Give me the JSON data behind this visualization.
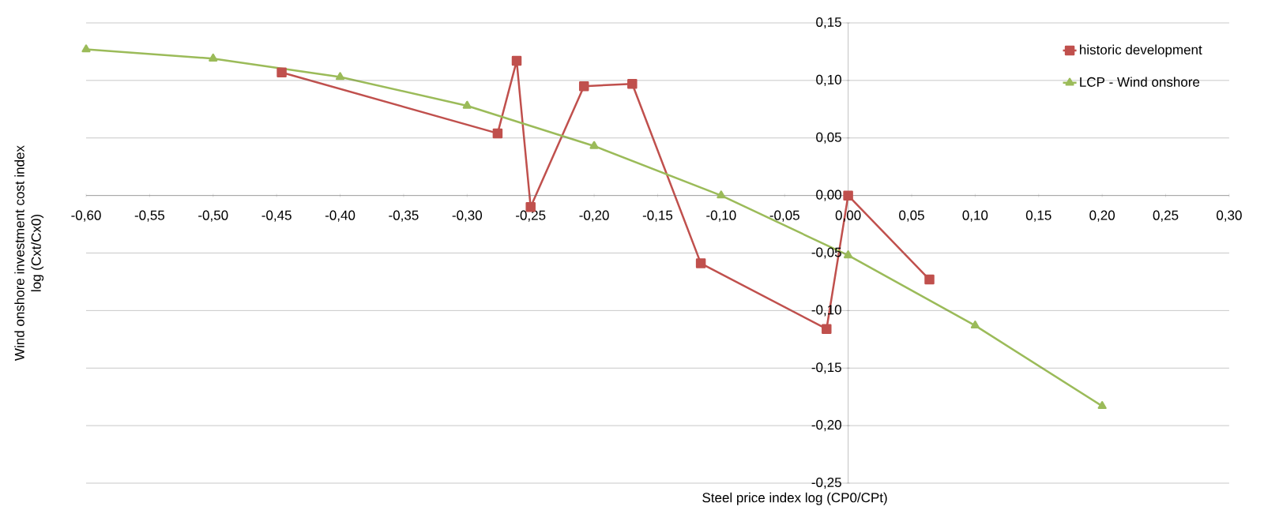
{
  "chart_data": {
    "type": "line",
    "xlabel": "Steel price index log (CP0/CPt)",
    "ylabel": "Wind onshore investment cost index\nlog (Cxt/Cx0)",
    "series": [
      {
        "name": "historic development",
        "color": "#c0504d",
        "marker": "square",
        "x": [
          -0.446,
          -0.276,
          -0.261,
          -0.25,
          -0.208,
          -0.17,
          -0.116,
          -0.017,
          0.0,
          0.064
        ],
        "values": [
          0.107,
          0.054,
          0.117,
          -0.01,
          0.095,
          0.097,
          -0.059,
          -0.116,
          0.0,
          -0.073
        ]
      },
      {
        "name": "LCP - Wind onshore",
        "color": "#9bbb59",
        "marker": "triangle",
        "x": [
          -0.6,
          -0.5,
          -0.4,
          -0.3,
          -0.2,
          -0.1,
          0.0,
          0.1,
          0.2
        ],
        "values": [
          0.127,
          0.119,
          0.103,
          0.078,
          0.043,
          0.0,
          -0.052,
          -0.113,
          -0.183
        ]
      }
    ],
    "xlim": [
      -0.6,
      0.3
    ],
    "ylim": [
      -0.25,
      0.15
    ],
    "xticks": [
      {
        "value": -0.6,
        "label": "-0,60"
      },
      {
        "value": -0.55,
        "label": "-0,55"
      },
      {
        "value": -0.5,
        "label": "-0,50"
      },
      {
        "value": -0.45,
        "label": "-0,45"
      },
      {
        "value": -0.4,
        "label": "-0,40"
      },
      {
        "value": -0.35,
        "label": "-0,35"
      },
      {
        "value": -0.3,
        "label": "-0,30"
      },
      {
        "value": -0.25,
        "label": "-0,25"
      },
      {
        "value": -0.2,
        "label": "-0,20"
      },
      {
        "value": -0.15,
        "label": "-0,15"
      },
      {
        "value": -0.1,
        "label": "-0,10"
      },
      {
        "value": -0.05,
        "label": "-0,05"
      },
      {
        "value": 0.0,
        "label": "0,00"
      },
      {
        "value": 0.05,
        "label": "0,05"
      },
      {
        "value": 0.1,
        "label": "0,10"
      },
      {
        "value": 0.15,
        "label": "0,15"
      },
      {
        "value": 0.2,
        "label": "0,20"
      },
      {
        "value": 0.25,
        "label": "0,25"
      },
      {
        "value": 0.3,
        "label": "0,30"
      }
    ],
    "yticks": [
      {
        "value": -0.25,
        "label": "-0,25"
      },
      {
        "value": -0.2,
        "label": "-0,20"
      },
      {
        "value": -0.15,
        "label": "-0,15"
      },
      {
        "value": -0.1,
        "label": "-0,10"
      },
      {
        "value": -0.05,
        "label": "-0,05"
      },
      {
        "value": 0.0,
        "label": "0,00"
      },
      {
        "value": 0.05,
        "label": "0,05"
      },
      {
        "value": 0.1,
        "label": "0,10"
      },
      {
        "value": 0.15,
        "label": "0,15"
      }
    ],
    "grid": "y",
    "legend": "top right",
    "line_style": "solid"
  }
}
